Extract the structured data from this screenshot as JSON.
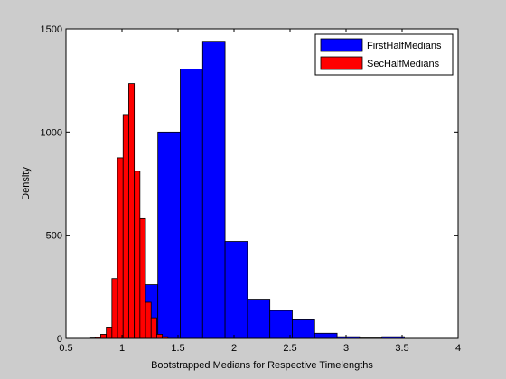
{
  "chart_data": {
    "type": "bar",
    "subtype": "histogram",
    "title": "",
    "xlabel": "Bootstrapped Medians for Respective Timelengths",
    "ylabel": "Density",
    "xlim": [
      0.5,
      4
    ],
    "ylim": [
      0,
      1500
    ],
    "xticks": [
      "0.5",
      "1",
      "1.5",
      "2",
      "2.5",
      "3",
      "3.5",
      "4"
    ],
    "yticks": [
      "0",
      "500",
      "1000",
      "1500"
    ],
    "grid": false,
    "legend_position": "top-right",
    "series": [
      {
        "name": "FirstHalfMedians",
        "color": "#0000ff",
        "bins": [
          {
            "x0": 0.72,
            "x1": 0.92,
            "y": 2
          },
          {
            "x0": 0.92,
            "x1": 1.12,
            "y": 75
          },
          {
            "x0": 1.12,
            "x1": 1.32,
            "y": 260
          },
          {
            "x0": 1.32,
            "x1": 1.52,
            "y": 1000
          },
          {
            "x0": 1.52,
            "x1": 1.72,
            "y": 1305
          },
          {
            "x0": 1.72,
            "x1": 1.92,
            "y": 1440
          },
          {
            "x0": 1.92,
            "x1": 2.12,
            "y": 470
          },
          {
            "x0": 2.12,
            "x1": 2.32,
            "y": 190
          },
          {
            "x0": 2.32,
            "x1": 2.52,
            "y": 135
          },
          {
            "x0": 2.52,
            "x1": 2.72,
            "y": 90
          },
          {
            "x0": 2.72,
            "x1": 2.92,
            "y": 25
          },
          {
            "x0": 2.92,
            "x1": 3.12,
            "y": 8
          },
          {
            "x0": 3.12,
            "x1": 3.32,
            "y": 2
          },
          {
            "x0": 3.32,
            "x1": 3.52,
            "y": 8
          }
        ]
      },
      {
        "name": "SecHalfMedians",
        "color": "#ff0000",
        "bins": [
          {
            "x0": 0.76,
            "x1": 0.81,
            "y": 5
          },
          {
            "x0": 0.81,
            "x1": 0.86,
            "y": 20
          },
          {
            "x0": 0.86,
            "x1": 0.91,
            "y": 55
          },
          {
            "x0": 0.91,
            "x1": 0.96,
            "y": 290
          },
          {
            "x0": 0.96,
            "x1": 1.01,
            "y": 875
          },
          {
            "x0": 1.01,
            "x1": 1.06,
            "y": 1085
          },
          {
            "x0": 1.06,
            "x1": 1.11,
            "y": 1235
          },
          {
            "x0": 1.11,
            "x1": 1.16,
            "y": 810
          },
          {
            "x0": 1.16,
            "x1": 1.21,
            "y": 580
          },
          {
            "x0": 1.21,
            "x1": 1.26,
            "y": 175
          },
          {
            "x0": 1.26,
            "x1": 1.31,
            "y": 100
          },
          {
            "x0": 1.31,
            "x1": 1.36,
            "y": 20
          },
          {
            "x0": 1.36,
            "x1": 1.41,
            "y": 8
          }
        ]
      }
    ]
  }
}
